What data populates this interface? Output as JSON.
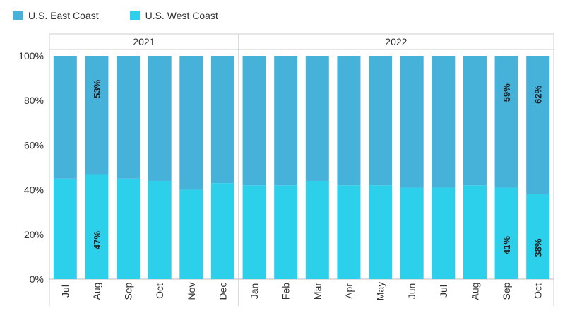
{
  "chart_data": {
    "type": "bar",
    "stacked": true,
    "normalized": true,
    "groups": [
      {
        "label": "2021",
        "count": 6
      },
      {
        "label": "2022",
        "count": 10
      }
    ],
    "categories": [
      "Jul",
      "Aug",
      "Sep",
      "Oct",
      "Nov",
      "Dec",
      "Jan",
      "Feb",
      "Mar",
      "Apr",
      "May",
      "Jun",
      "Jul",
      "Aug",
      "Sep",
      "Oct"
    ],
    "series": [
      {
        "name": "U.S. West Coast",
        "color": "#2dd0ea",
        "values": [
          45,
          47,
          45,
          44,
          40,
          43,
          42,
          42,
          44,
          42,
          42,
          41,
          41,
          42,
          41,
          38
        ]
      },
      {
        "name": "U.S. East Coast",
        "color": "#46b1d9",
        "values": [
          55,
          53,
          55,
          56,
          60,
          57,
          58,
          58,
          56,
          58,
          58,
          59,
          59,
          58,
          59,
          62
        ]
      }
    ],
    "data_labels": [
      {
        "index": 1,
        "series": 0,
        "text": "47%"
      },
      {
        "index": 1,
        "series": 1,
        "text": "53%"
      },
      {
        "index": 14,
        "series": 0,
        "text": "41%"
      },
      {
        "index": 14,
        "series": 1,
        "text": "59%"
      },
      {
        "index": 15,
        "series": 0,
        "text": "38%"
      },
      {
        "index": 15,
        "series": 1,
        "text": "62%"
      }
    ],
    "yticks": [
      "0%",
      "20%",
      "40%",
      "60%",
      "80%",
      "100%"
    ],
    "ylim": [
      0,
      100
    ],
    "legend_position": "top-left",
    "grid": false
  }
}
